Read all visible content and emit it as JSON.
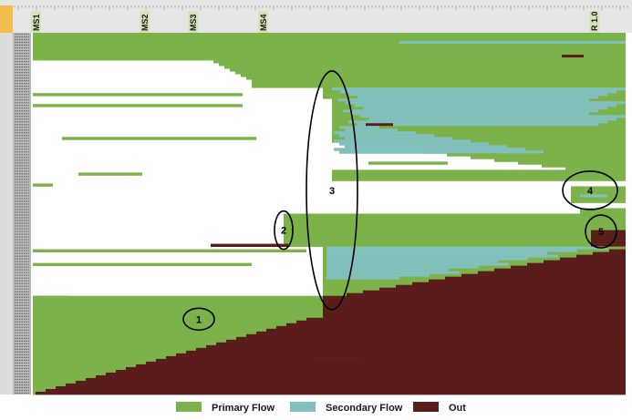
{
  "colors": {
    "primary": "#7cb24a",
    "secondary": "#82c0bf",
    "out": "#5b1c1c",
    "ruler": "#e6e6e6",
    "label_bg": "#d6e3bc",
    "corner": "#f2bd4e"
  },
  "chart_data": {
    "type": "heatmap",
    "orientation": "rows-over-time",
    "milestones": [
      {
        "label": "MS1",
        "time": 0
      },
      {
        "label": "MS2",
        "time": 119
      },
      {
        "label": "MS3",
        "time": 172
      },
      {
        "label": "MS4",
        "time": 249
      },
      {
        "label": "R 1.0",
        "time": 612
      }
    ],
    "time_range": [
      0,
      650
    ],
    "row_count": 132,
    "legend": [
      {
        "label": "Primary Flow",
        "color_key": "primary"
      },
      {
        "label": "Secondary Flow",
        "color_key": "secondary"
      },
      {
        "label": "Out",
        "color_key": "out"
      }
    ],
    "annotations": [
      {
        "label": "1",
        "time": 182,
        "row": 104.5
      },
      {
        "label": "2",
        "time": 275,
        "row": 72
      },
      {
        "label": "3",
        "time": 328,
        "row": 57.5
      },
      {
        "label": "4",
        "time": 611,
        "row": 57.5
      },
      {
        "label": "5",
        "time": 623,
        "row": 72.5
      }
    ]
  }
}
